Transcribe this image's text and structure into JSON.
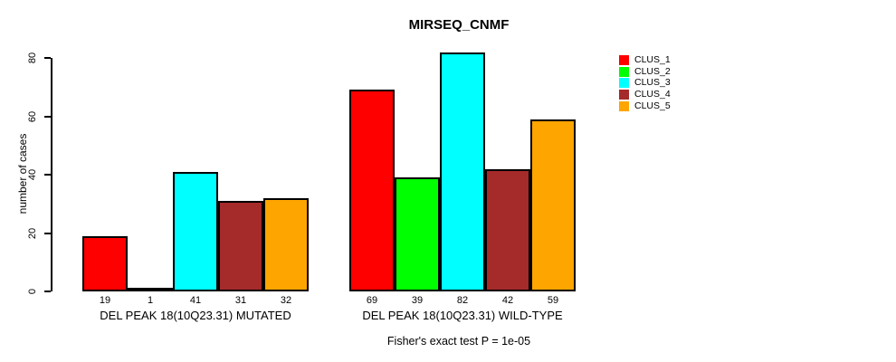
{
  "chart_data": {
    "type": "bar",
    "title": "MIRSEQ_CNMF",
    "ylabel": "number of cases",
    "xlabel": "",
    "yticks": [
      0,
      20,
      40,
      60,
      80
    ],
    "ylim": [
      0,
      80
    ],
    "grid": false,
    "legend_position": "right-outside",
    "categories": [
      "DEL PEAK 18(10Q23.31) MUTATED",
      "DEL PEAK 18(10Q23.31) WILD-TYPE"
    ],
    "groups": [
      {
        "label": "DEL PEAK 18(10Q23.31) MUTATED",
        "values": [
          19,
          1,
          41,
          31,
          32
        ]
      },
      {
        "label": "DEL PEAK 18(10Q23.31) WILD-TYPE",
        "values": [
          69,
          39,
          82,
          42,
          59
        ]
      }
    ],
    "series": [
      {
        "name": "CLUS_1",
        "color": "#FF0000"
      },
      {
        "name": "CLUS_2",
        "color": "#00FF00"
      },
      {
        "name": "CLUS_3",
        "color": "#00FFFF"
      },
      {
        "name": "CLUS_4",
        "color": "#A52A2A"
      },
      {
        "name": "CLUS_5",
        "color": "#FFA500"
      }
    ],
    "annotation": "Fisher's exact test P = 1e-05",
    "colors": {
      "background": "#FFFFFF",
      "axis": "#000000",
      "bar_border": "#000000",
      "text": "#000000"
    }
  }
}
